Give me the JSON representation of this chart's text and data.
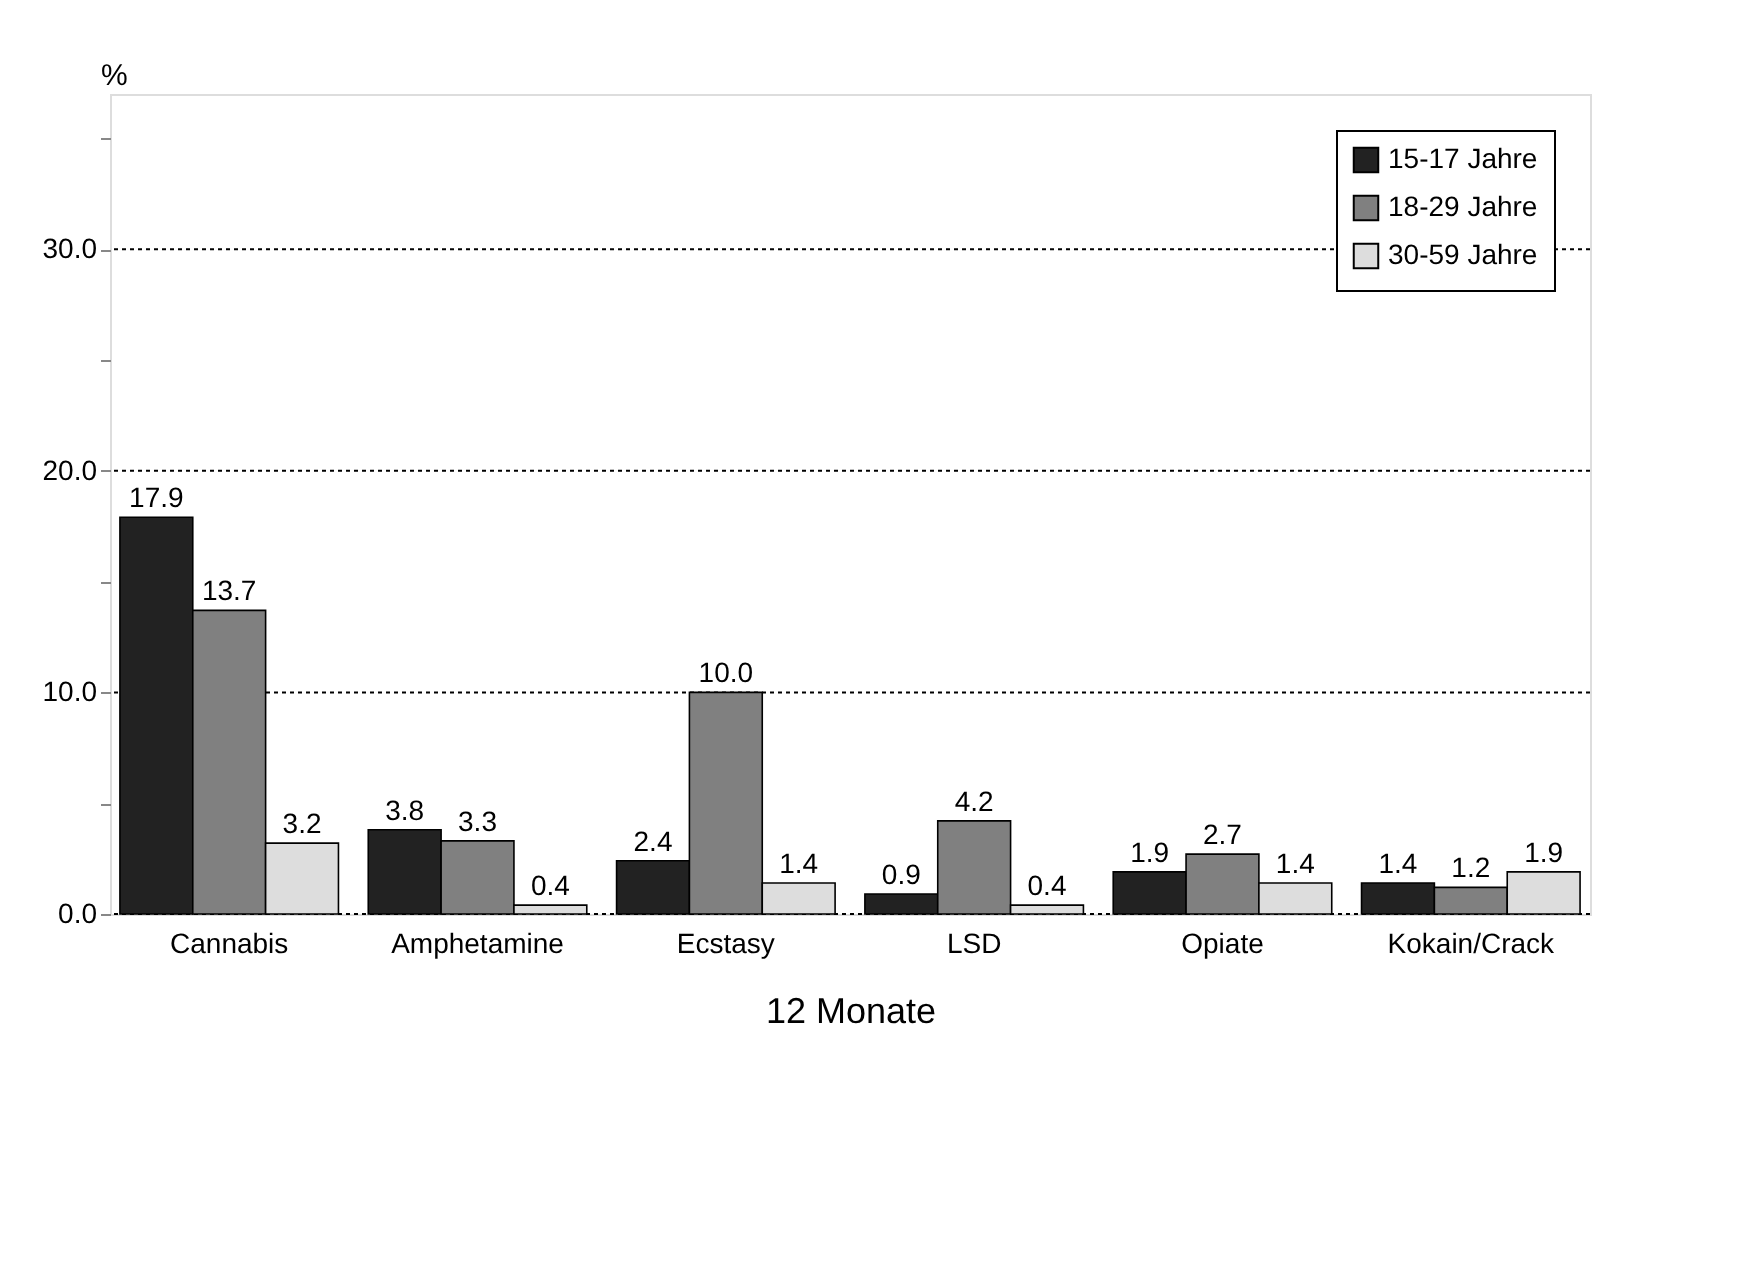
{
  "chart_data": {
    "type": "bar",
    "xlabel": "12 Monate",
    "ylabel": "%",
    "categories": [
      "Cannabis",
      "Amphetamine",
      "Ecstasy",
      "LSD",
      "Opiate",
      "Kokain/Crack"
    ],
    "series": [
      {
        "name": "15-17 Jahre",
        "color": "#222222",
        "values": [
          17.9,
          3.8,
          2.4,
          0.9,
          1.9,
          1.4
        ],
        "value_labels": [
          "17.9",
          "3.8",
          "2.4",
          "0.9",
          "1.9",
          "1.4"
        ]
      },
      {
        "name": "18-29 Jahre",
        "color": "#808080",
        "values": [
          13.7,
          3.3,
          10.0,
          4.2,
          2.7,
          1.2
        ],
        "value_labels": [
          "13.7",
          "3.3",
          "10.0",
          "4.2",
          "2.7",
          "1.2"
        ]
      },
      {
        "name": "30-59 Jahre",
        "color": "#dddddd",
        "values": [
          3.2,
          0.4,
          1.4,
          0.4,
          1.4,
          1.9
        ],
        "value_labels": [
          "3.2",
          "0.4",
          "1.4",
          "0.4",
          "1.4",
          "1.9"
        ]
      }
    ],
    "ylim": [
      0,
      37
    ],
    "yticks": [
      {
        "value": 0,
        "label": "0.0"
      },
      {
        "value": 5,
        "label": null
      },
      {
        "value": 10,
        "label": "10.0"
      },
      {
        "value": 15,
        "label": null
      },
      {
        "value": 20,
        "label": "20.0"
      },
      {
        "value": 25,
        "label": null
      },
      {
        "value": 30,
        "label": "30.0"
      },
      {
        "value": 35,
        "label": null
      }
    ],
    "grid": "y",
    "legend": "top right"
  }
}
